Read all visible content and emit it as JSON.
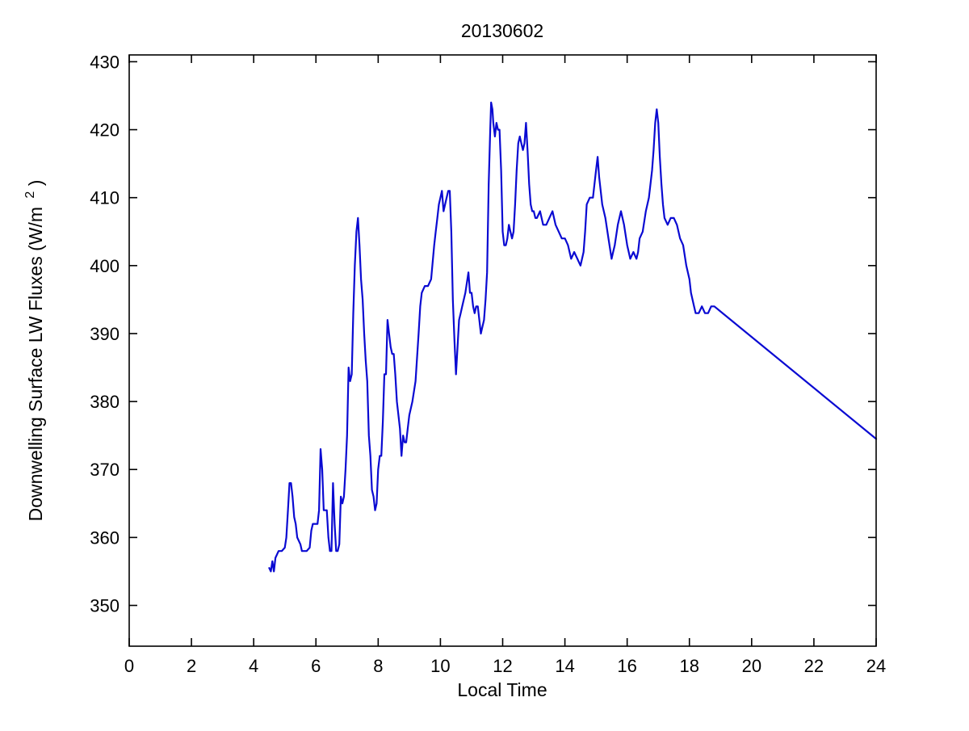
{
  "page": {
    "background": "#ffffff"
  },
  "chart_data": {
    "type": "line",
    "title": "20130602",
    "xlabel": "Local Time",
    "ylabel": {
      "prefix": "Downwelling Surface LW Fluxes (W/m",
      "sup": "2",
      "suffix": ")"
    },
    "xlim": [
      0,
      24
    ],
    "ylim": [
      344,
      431
    ],
    "xticks": [
      0,
      2,
      4,
      6,
      8,
      10,
      12,
      14,
      16,
      18,
      20,
      22,
      24
    ],
    "yticks": [
      350,
      360,
      370,
      380,
      390,
      400,
      410,
      420,
      430
    ],
    "grid": false,
    "legend": null,
    "line_color": "#0a0ad2",
    "line_width": 2.2,
    "series": [
      {
        "name": "downwelling_lw_flux",
        "points": [
          [
            4.5,
            355.5
          ],
          [
            4.55,
            355
          ],
          [
            4.6,
            356.5
          ],
          [
            4.65,
            355
          ],
          [
            4.7,
            357
          ],
          [
            4.8,
            358
          ],
          [
            4.9,
            358
          ],
          [
            5.0,
            358.5
          ],
          [
            5.05,
            360
          ],
          [
            5.1,
            364
          ],
          [
            5.15,
            368
          ],
          [
            5.2,
            368
          ],
          [
            5.25,
            366
          ],
          [
            5.3,
            363
          ],
          [
            5.35,
            362
          ],
          [
            5.4,
            360
          ],
          [
            5.5,
            359
          ],
          [
            5.55,
            358
          ],
          [
            5.6,
            358
          ],
          [
            5.7,
            358
          ],
          [
            5.8,
            358.5
          ],
          [
            5.85,
            361
          ],
          [
            5.9,
            362
          ],
          [
            6.0,
            362
          ],
          [
            6.05,
            362
          ],
          [
            6.1,
            364
          ],
          [
            6.15,
            373
          ],
          [
            6.2,
            370
          ],
          [
            6.25,
            364
          ],
          [
            6.3,
            364
          ],
          [
            6.35,
            364
          ],
          [
            6.4,
            360
          ],
          [
            6.45,
            358
          ],
          [
            6.5,
            358
          ],
          [
            6.55,
            368
          ],
          [
            6.6,
            362
          ],
          [
            6.65,
            358
          ],
          [
            6.7,
            358
          ],
          [
            6.75,
            359
          ],
          [
            6.8,
            366
          ],
          [
            6.85,
            365
          ],
          [
            6.9,
            366
          ],
          [
            6.95,
            370
          ],
          [
            7.0,
            375
          ],
          [
            7.05,
            385
          ],
          [
            7.1,
            383
          ],
          [
            7.15,
            384
          ],
          [
            7.2,
            393
          ],
          [
            7.25,
            400
          ],
          [
            7.3,
            405
          ],
          [
            7.35,
            407
          ],
          [
            7.4,
            403
          ],
          [
            7.45,
            398
          ],
          [
            7.5,
            395
          ],
          [
            7.55,
            390
          ],
          [
            7.6,
            386
          ],
          [
            7.65,
            383
          ],
          [
            7.7,
            375
          ],
          [
            7.75,
            372
          ],
          [
            7.8,
            367
          ],
          [
            7.85,
            366
          ],
          [
            7.9,
            364
          ],
          [
            7.95,
            365
          ],
          [
            8.0,
            370
          ],
          [
            8.05,
            372
          ],
          [
            8.1,
            372
          ],
          [
            8.15,
            377
          ],
          [
            8.2,
            384
          ],
          [
            8.25,
            384
          ],
          [
            8.3,
            392
          ],
          [
            8.35,
            390
          ],
          [
            8.4,
            388
          ],
          [
            8.45,
            387
          ],
          [
            8.5,
            387
          ],
          [
            8.55,
            384
          ],
          [
            8.6,
            380
          ],
          [
            8.65,
            378
          ],
          [
            8.7,
            376
          ],
          [
            8.75,
            372
          ],
          [
            8.8,
            375
          ],
          [
            8.85,
            374
          ],
          [
            8.9,
            374
          ],
          [
            8.95,
            376
          ],
          [
            9.0,
            378
          ],
          [
            9.1,
            380
          ],
          [
            9.2,
            383
          ],
          [
            9.3,
            390
          ],
          [
            9.35,
            394
          ],
          [
            9.4,
            396
          ],
          [
            9.5,
            397
          ],
          [
            9.6,
            397
          ],
          [
            9.7,
            398
          ],
          [
            9.8,
            403
          ],
          [
            9.85,
            405
          ],
          [
            9.9,
            407
          ],
          [
            9.95,
            409
          ],
          [
            10.0,
            410
          ],
          [
            10.05,
            411
          ],
          [
            10.1,
            408
          ],
          [
            10.15,
            409
          ],
          [
            10.2,
            410
          ],
          [
            10.25,
            411
          ],
          [
            10.3,
            411
          ],
          [
            10.35,
            405
          ],
          [
            10.4,
            395
          ],
          [
            10.45,
            389
          ],
          [
            10.5,
            384
          ],
          [
            10.55,
            388
          ],
          [
            10.6,
            392
          ],
          [
            10.65,
            393
          ],
          [
            10.7,
            394
          ],
          [
            10.8,
            396
          ],
          [
            10.9,
            399
          ],
          [
            10.95,
            396
          ],
          [
            11.0,
            396
          ],
          [
            11.05,
            394
          ],
          [
            11.1,
            393
          ],
          [
            11.15,
            394
          ],
          [
            11.2,
            394
          ],
          [
            11.25,
            392
          ],
          [
            11.3,
            390
          ],
          [
            11.35,
            391
          ],
          [
            11.4,
            392
          ],
          [
            11.45,
            395
          ],
          [
            11.5,
            399
          ],
          [
            11.55,
            412
          ],
          [
            11.6,
            420
          ],
          [
            11.63,
            424
          ],
          [
            11.67,
            423
          ],
          [
            11.7,
            421
          ],
          [
            11.75,
            419
          ],
          [
            11.8,
            421
          ],
          [
            11.85,
            420
          ],
          [
            11.9,
            420
          ],
          [
            11.95,
            414
          ],
          [
            12.0,
            405
          ],
          [
            12.05,
            403
          ],
          [
            12.1,
            403
          ],
          [
            12.15,
            404
          ],
          [
            12.2,
            406
          ],
          [
            12.25,
            405
          ],
          [
            12.3,
            404
          ],
          [
            12.35,
            405
          ],
          [
            12.4,
            409
          ],
          [
            12.45,
            414
          ],
          [
            12.5,
            418
          ],
          [
            12.55,
            419
          ],
          [
            12.6,
            418
          ],
          [
            12.65,
            417
          ],
          [
            12.7,
            418
          ],
          [
            12.75,
            421
          ],
          [
            12.8,
            417
          ],
          [
            12.85,
            412
          ],
          [
            12.9,
            409
          ],
          [
            12.95,
            408
          ],
          [
            13.0,
            408
          ],
          [
            13.05,
            407
          ],
          [
            13.1,
            407
          ],
          [
            13.2,
            408
          ],
          [
            13.3,
            406
          ],
          [
            13.4,
            406
          ],
          [
            13.5,
            407
          ],
          [
            13.6,
            408
          ],
          [
            13.7,
            406
          ],
          [
            13.8,
            405
          ],
          [
            13.9,
            404
          ],
          [
            14.0,
            404
          ],
          [
            14.1,
            403
          ],
          [
            14.2,
            401
          ],
          [
            14.3,
            402
          ],
          [
            14.4,
            401
          ],
          [
            14.5,
            400
          ],
          [
            14.6,
            402
          ],
          [
            14.65,
            405
          ],
          [
            14.7,
            409
          ],
          [
            14.8,
            410
          ],
          [
            14.9,
            410
          ],
          [
            15.0,
            414
          ],
          [
            15.05,
            416
          ],
          [
            15.1,
            413
          ],
          [
            15.15,
            411
          ],
          [
            15.2,
            409
          ],
          [
            15.3,
            407
          ],
          [
            15.4,
            404
          ],
          [
            15.5,
            401
          ],
          [
            15.55,
            402
          ],
          [
            15.6,
            403
          ],
          [
            15.7,
            406
          ],
          [
            15.8,
            408
          ],
          [
            15.85,
            407
          ],
          [
            15.9,
            406
          ],
          [
            16.0,
            403
          ],
          [
            16.1,
            401
          ],
          [
            16.2,
            402
          ],
          [
            16.3,
            401
          ],
          [
            16.35,
            402
          ],
          [
            16.4,
            404
          ],
          [
            16.5,
            405
          ],
          [
            16.6,
            408
          ],
          [
            16.7,
            410
          ],
          [
            16.8,
            414
          ],
          [
            16.85,
            417
          ],
          [
            16.9,
            421
          ],
          [
            16.95,
            423
          ],
          [
            17.0,
            421
          ],
          [
            17.05,
            416
          ],
          [
            17.1,
            412
          ],
          [
            17.15,
            409
          ],
          [
            17.2,
            407
          ],
          [
            17.3,
            406
          ],
          [
            17.4,
            407
          ],
          [
            17.5,
            407
          ],
          [
            17.6,
            406
          ],
          [
            17.7,
            404
          ],
          [
            17.8,
            403
          ],
          [
            17.9,
            400
          ],
          [
            18.0,
            398
          ],
          [
            18.05,
            396
          ],
          [
            18.1,
            395
          ],
          [
            18.15,
            394
          ],
          [
            18.2,
            393
          ],
          [
            18.3,
            393
          ],
          [
            18.4,
            394
          ],
          [
            18.5,
            393
          ],
          [
            18.6,
            393
          ],
          [
            18.7,
            394
          ],
          [
            18.8,
            394
          ],
          [
            24.0,
            374.5
          ]
        ]
      }
    ]
  }
}
